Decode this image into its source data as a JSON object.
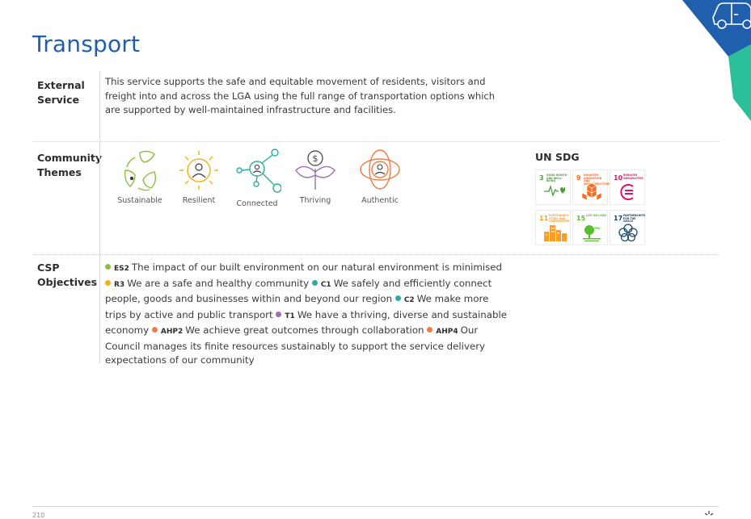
{
  "page": {
    "title": "Transport",
    "page_number": "210"
  },
  "external_service": {
    "label_line1": "External",
    "label_line2": "Service",
    "text": "This service supports the safe and equitable movement of residents, visitors and freight into and across the LGA using the full range of transportation options which are supported by well-maintained infrastructure and facilities."
  },
  "community_themes": {
    "label_line1": "Community",
    "label_line2": "Themes",
    "items": [
      {
        "label": "Sustainable",
        "icon": "leaf-recycle-icon",
        "color": "#8cbf3f"
      },
      {
        "label": "Resilient",
        "icon": "sun-person-icon",
        "color": "#f2b21b"
      },
      {
        "label": "Connected",
        "icon": "network-person-icon",
        "color": "#2aaf9e"
      },
      {
        "label": "Thriving",
        "icon": "dollar-plant-icon",
        "color": "#9b6fb0"
      },
      {
        "label": "Authentic",
        "icon": "orbit-person-icon",
        "color": "#ef7b45"
      }
    ]
  },
  "un_sdg": {
    "title": "UN SDG",
    "tiles": [
      {
        "number": "3",
        "text": "GOOD HEALTH AND WELL-BEING",
        "color": "#4c9f38",
        "icon": "heartbeat-icon"
      },
      {
        "number": "9",
        "text": "INDUSTRY, INNOVATION AND INFRASTRUCTURE",
        "color": "#f36d25",
        "icon": "cubes-icon"
      },
      {
        "number": "10",
        "text": "REDUCED INEQUALITIES",
        "color": "#dd1367",
        "icon": "equals-circle-icon"
      },
      {
        "number": "11",
        "text": "SUSTAINABLE CITIES AND COMMUNITIES",
        "color": "#fd9d24",
        "icon": "buildings-icon"
      },
      {
        "number": "15",
        "text": "LIFE ON LAND",
        "color": "#56c02b",
        "icon": "tree-icon"
      },
      {
        "number": "17",
        "text": "PARTNERSHIPS FOR THE GOALS",
        "color": "#19486a",
        "icon": "rings-icon"
      }
    ]
  },
  "csp_objectives": {
    "label_line1": "CSP",
    "label_line2": "Objectives",
    "items": [
      {
        "code": "ES2",
        "text": "The impact of our built environment on our natural environment is minimised",
        "color": "#8cbf3f"
      },
      {
        "code": "R3",
        "text": "We are a safe and healthy community",
        "color": "#f2b21b"
      },
      {
        "code": "C1",
        "text": "We safely and efficiently connect people, goods and businesses within and beyond our region",
        "color": "#2aaf9e"
      },
      {
        "code": "C2",
        "text": "We make more trips by active and public transport",
        "color": "#2aaf9e"
      },
      {
        "code": "T1",
        "text": "We have a thriving, diverse and sustainable economy",
        "color": "#9b6fb0"
      },
      {
        "code": "AHP2",
        "text": "We achieve great outcomes through collaboration",
        "color": "#ef7b45"
      },
      {
        "code": "AHP4",
        "text": "Our Council manages its finite resources sustainably to support the service delivery expectations of our community",
        "color": "#ef7b45"
      }
    ]
  },
  "colors": {
    "title_blue": "#1f5fae",
    "corner_blue": "#1f5fae",
    "corner_teal": "#2bbf9a"
  }
}
